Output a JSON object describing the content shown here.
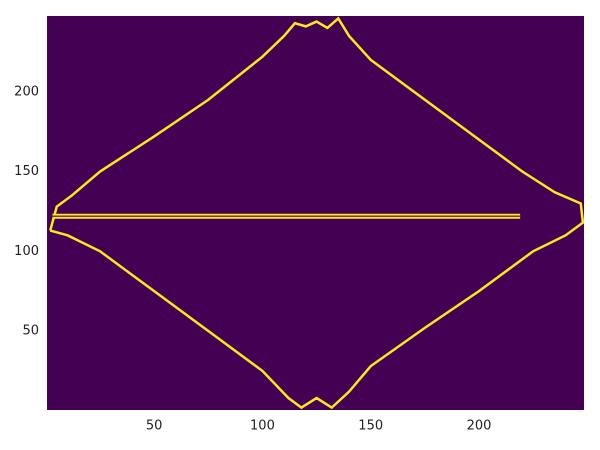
{
  "chart_data": {
    "type": "image",
    "background": "#440154",
    "color": "#fde725",
    "xlim": [
      0.5,
      248.5
    ],
    "ylim": [
      0.5,
      247.5
    ],
    "xticks": [
      50,
      100,
      150,
      200
    ],
    "yticks": [
      50,
      100,
      150,
      200
    ],
    "outline": {
      "x": [
        2,
        5,
        12,
        25,
        50,
        75,
        100,
        110,
        115,
        120,
        125,
        130,
        135,
        140,
        150,
        175,
        200,
        220,
        235,
        247,
        248,
        240,
        225,
        200,
        175,
        150,
        140,
        132,
        125,
        118,
        112,
        100,
        75,
        50,
        25,
        10,
        2
      ],
      "y": [
        113,
        128,
        135,
        150,
        172,
        195,
        222,
        235,
        243,
        241,
        244,
        240,
        246,
        235,
        220,
        195,
        170,
        150,
        137,
        130,
        118,
        110,
        100,
        75,
        52,
        28,
        12,
        2,
        8,
        2,
        8,
        25,
        50,
        75,
        100,
        110,
        113
      ]
    },
    "segment": {
      "x": [
        3,
        219
      ],
      "y": [
        122,
        122
      ]
    }
  }
}
